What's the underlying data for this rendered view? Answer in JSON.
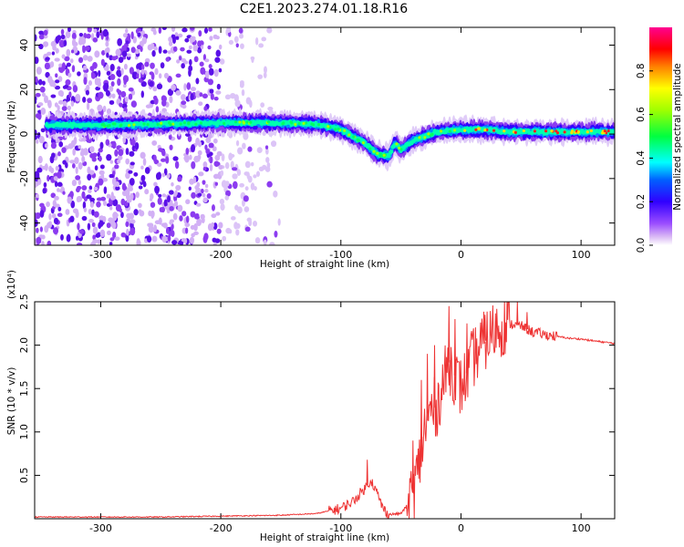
{
  "title": "C2E1.2023.274.01.18.R16",
  "chart_data": [
    {
      "type": "heatmap",
      "xlabel": "Height of straight line (km)",
      "ylabel": "Frequency (Hz)",
      "xlim": [
        -355,
        128
      ],
      "ylim": [
        -50,
        48
      ],
      "xticks": [
        -300,
        -200,
        -100,
        0,
        100
      ],
      "yticks": [
        -40,
        -20,
        0,
        20,
        40
      ],
      "colorbar": {
        "label": "Normalized spectral amplitude",
        "range": [
          0,
          1
        ],
        "ticks": [
          0.0,
          0.2,
          0.4,
          0.6,
          0.8
        ],
        "colormap": [
          "#ffffff",
          "#d9b8f5",
          "#8a2be2",
          "#4b00ff",
          "#0000ff",
          "#00ffff",
          "#00ff00",
          "#ffff00",
          "#ff8000",
          "#ff0000",
          "#ff0090"
        ]
      },
      "ridge": {
        "x": [
          -345,
          -300,
          -250,
          -200,
          -150,
          -120,
          -100,
          -80,
          -70,
          -60,
          -55,
          -50,
          -40,
          -30,
          -20,
          0,
          20,
          40,
          60,
          80,
          100,
          128
        ],
        "y": [
          4,
          4,
          4.5,
          5,
          5,
          4.5,
          2,
          -4,
          -9,
          -10,
          -4,
          -7,
          -3,
          -1,
          1,
          2,
          2,
          1,
          1,
          1,
          1,
          1
        ]
      }
    },
    {
      "type": "line",
      "xlabel": "Height of straight line (km)",
      "ylabel": "SNR (10 * v/v)",
      "scale_note": "(x10⁴)",
      "xlim": [
        -355,
        128
      ],
      "ylim": [
        0,
        2.5
      ],
      "xticks": [
        -300,
        -200,
        -100,
        0,
        100
      ],
      "yticks": [
        0.5,
        1.0,
        1.5,
        2.0,
        2.5
      ],
      "series": [
        {
          "color": "#ee3333",
          "x": [
            -355,
            -300,
            -250,
            -200,
            -150,
            -120,
            -100,
            -90,
            -80,
            -75,
            -70,
            -65,
            -60,
            -50,
            -45,
            -40,
            -35,
            -30,
            -25,
            -20,
            -15,
            -10,
            -5,
            0,
            10,
            20,
            30,
            40,
            50,
            60,
            70,
            80,
            90,
            100,
            110,
            128
          ],
          "y": [
            0.02,
            0.02,
            0.02,
            0.03,
            0.04,
            0.06,
            0.12,
            0.2,
            0.35,
            0.45,
            0.3,
            0.12,
            0.05,
            0.06,
            0.15,
            0.3,
            0.6,
            1.05,
            1.25,
            1.3,
            1.55,
            1.8,
            1.65,
            1.5,
            1.85,
            2.05,
            2.2,
            2.25,
            2.22,
            2.15,
            2.12,
            2.1,
            2.08,
            2.07,
            2.05,
            2.02
          ],
          "spikes": [
            {
              "x": -78,
              "y": 0.68
            },
            {
              "x": -40,
              "y": 0.9
            },
            {
              "x": -33,
              "y": 1.6
            },
            {
              "x": -28,
              "y": 1.9
            },
            {
              "x": -22,
              "y": 2.0
            },
            {
              "x": -10,
              "y": 2.45
            },
            {
              "x": -5,
              "y": 2.3
            },
            {
              "x": 5,
              "y": 2.25
            },
            {
              "x": 20,
              "y": 2.35
            },
            {
              "x": 47,
              "y": 2.5
            },
            {
              "x": 55,
              "y": 2.38
            }
          ]
        }
      ]
    }
  ]
}
